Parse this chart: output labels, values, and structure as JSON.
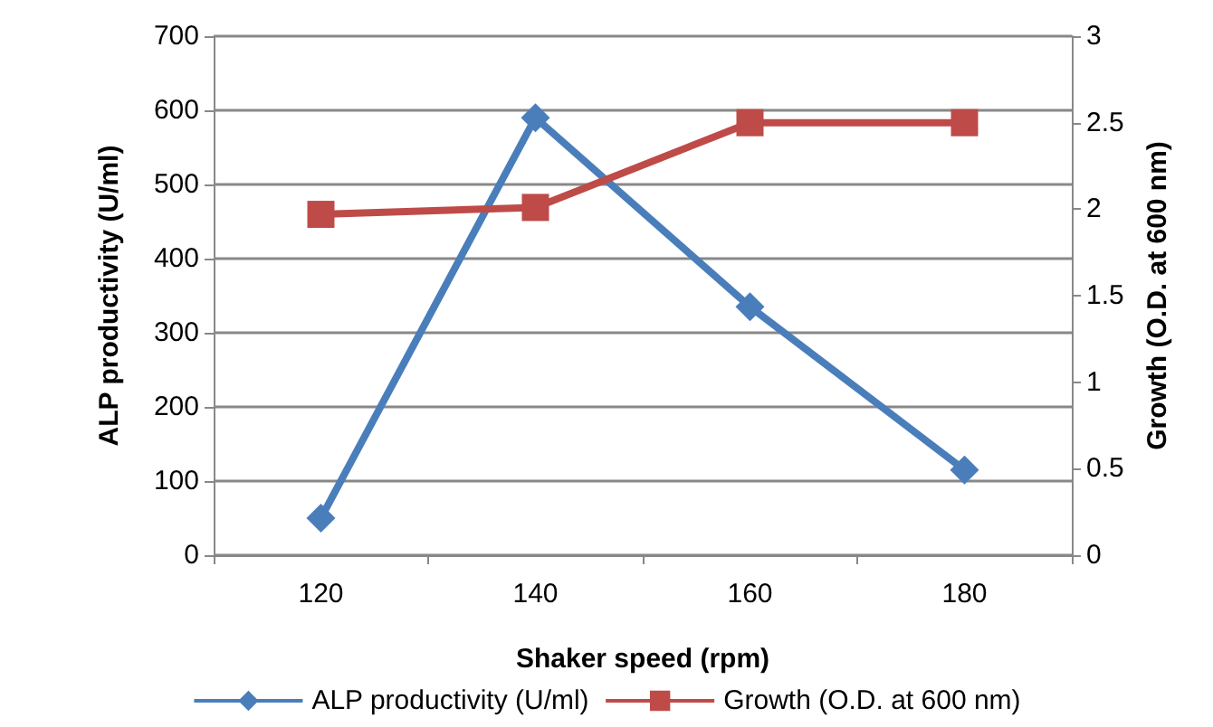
{
  "chart_data": {
    "type": "line",
    "xlabel": "Shaker speed (rpm)",
    "ylabel": "ALP productivity (U/ml)",
    "y2label": "Growth (O.D. at 600 nm)",
    "categories": [
      "120",
      "140",
      "160",
      "180"
    ],
    "series": [
      {
        "name": "ALP productivity (U/ml)",
        "color": "#4a7ebb",
        "values": [
          50,
          590,
          335,
          115
        ],
        "marker": "diamond"
      },
      {
        "name": "Growth (O.D. at 600 nm)",
        "color": "#be4b48",
        "values": [
          1.97,
          2.01,
          2.5,
          2.5
        ],
        "axis": "y2",
        "marker": "square"
      }
    ],
    "ylim": [
      0,
      700
    ],
    "yticks": [
      0,
      100,
      200,
      300,
      400,
      500,
      600,
      700
    ],
    "y2lim": [
      0,
      3
    ],
    "y2ticks": [
      0,
      0.5,
      1,
      1.5,
      2,
      2.5,
      3
    ],
    "grid": "y",
    "legend": "bottom",
    "line_style": "solid"
  }
}
